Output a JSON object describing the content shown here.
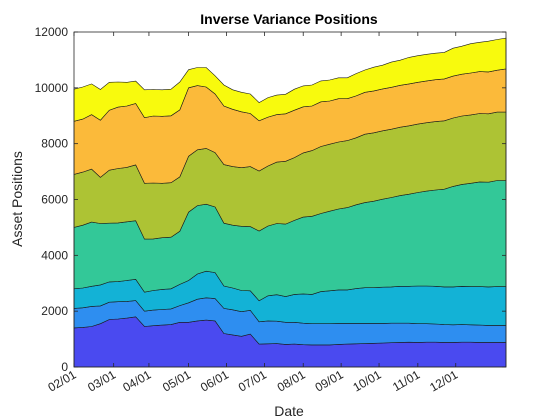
{
  "chart_data": {
    "type": "area",
    "stacked": true,
    "title": "Inverse Variance Positions",
    "xlabel": "Date",
    "ylabel": "Asset Positions",
    "ylim": [
      0,
      12000
    ],
    "yticks": [
      0,
      2000,
      4000,
      6000,
      8000,
      10000,
      12000
    ],
    "ytick_labels": [
      "0",
      "2000",
      "4000",
      "6000",
      "8000",
      "10000",
      "12000"
    ],
    "xlim": [
      1,
      50
    ],
    "xticks": [
      1,
      5.5,
      9.5,
      14,
      18.3,
      22.6,
      27,
      31.3,
      35.6,
      40,
      44.3
    ],
    "xtick_labels": [
      "02/01",
      "03/01",
      "04/01",
      "05/01",
      "06/01",
      "07/01",
      "08/01",
      "09/01",
      "10/01",
      "11/01",
      "12/01"
    ],
    "grid": false,
    "box": true,
    "x": [
      1,
      2,
      3,
      4,
      5,
      6,
      7,
      8,
      9,
      10,
      11,
      12,
      13,
      14,
      15,
      16,
      17,
      18,
      19,
      20,
      21,
      22,
      23,
      24,
      25,
      26,
      27,
      28,
      29,
      30,
      31,
      32,
      33,
      34,
      35,
      36,
      37,
      38,
      39,
      40,
      41,
      42,
      43,
      44,
      45,
      46,
      47,
      48,
      49,
      50
    ],
    "series": [
      {
        "color": "#4a4af0",
        "values": [
          1400,
          1420,
          1450,
          1550,
          1700,
          1720,
          1750,
          1800,
          1450,
          1480,
          1500,
          1520,
          1600,
          1600,
          1650,
          1680,
          1650,
          1200,
          1150,
          1100,
          1180,
          820,
          830,
          840,
          810,
          820,
          800,
          790,
          790,
          790,
          810,
          820,
          830,
          840,
          850,
          860,
          870,
          880,
          890,
          880,
          890,
          890,
          880,
          880,
          890,
          890,
          880,
          880,
          880,
          880
        ]
      },
      {
        "color": "#2e8ef0",
        "values": [
          700,
          700,
          720,
          640,
          620,
          620,
          600,
          580,
          550,
          560,
          560,
          560,
          600,
          700,
          780,
          800,
          800,
          900,
          900,
          880,
          850,
          800,
          820,
          800,
          790,
          780,
          770,
          760,
          760,
          760,
          750,
          740,
          730,
          720,
          710,
          700,
          700,
          690,
          680,
          670,
          660,
          650,
          640,
          630,
          630,
          620,
          620,
          610,
          610,
          610
        ]
      },
      {
        "color": "#13b2d6",
        "values": [
          700,
          710,
          720,
          750,
          730,
          720,
          750,
          760,
          680,
          700,
          720,
          720,
          760,
          800,
          900,
          950,
          930,
          800,
          780,
          760,
          700,
          750,
          900,
          950,
          920,
          1000,
          1050,
          1050,
          1150,
          1180,
          1200,
          1200,
          1250,
          1280,
          1280,
          1300,
          1300,
          1320,
          1320,
          1350,
          1350,
          1350,
          1350,
          1360,
          1370,
          1370,
          1380,
          1380,
          1390,
          1390
        ]
      },
      {
        "color": "#33c898",
        "values": [
          2200,
          2250,
          2300,
          2200,
          2100,
          2100,
          2100,
          2100,
          1900,
          1850,
          1850,
          1850,
          1900,
          2450,
          2450,
          2400,
          2350,
          2250,
          2250,
          2300,
          2300,
          2500,
          2500,
          2550,
          2600,
          2650,
          2750,
          2800,
          2800,
          2850,
          2900,
          2950,
          3000,
          3050,
          3100,
          3150,
          3200,
          3250,
          3300,
          3350,
          3400,
          3450,
          3500,
          3600,
          3650,
          3700,
          3750,
          3750,
          3800,
          3800
        ]
      },
      {
        "color": "#adc334",
        "values": [
          1900,
          1900,
          1900,
          1650,
          1900,
          1950,
          1950,
          2000,
          2000,
          2000,
          1950,
          1950,
          1950,
          2000,
          2000,
          2000,
          1950,
          2100,
          2100,
          2100,
          2150,
          2150,
          2150,
          2200,
          2250,
          2250,
          2300,
          2350,
          2400,
          2400,
          2400,
          2400,
          2400,
          2450,
          2450,
          2450,
          2450,
          2450,
          2450,
          2450,
          2450,
          2450,
          2450,
          2450,
          2450,
          2450,
          2450,
          2450,
          2450,
          2450
        ]
      },
      {
        "color": "#fbba3a",
        "values": [
          1900,
          1900,
          1950,
          2050,
          2150,
          2200,
          2200,
          2200,
          2350,
          2400,
          2400,
          2400,
          2400,
          2450,
          2300,
          2200,
          2100,
          2100,
          2050,
          2000,
          1900,
          1800,
          1750,
          1700,
          1700,
          1700,
          1650,
          1600,
          1600,
          1550,
          1550,
          1500,
          1500,
          1500,
          1500,
          1500,
          1500,
          1500,
          1500,
          1500,
          1500,
          1500,
          1500,
          1500,
          1500,
          1500,
          1500,
          1500,
          1500,
          1550
        ]
      },
      {
        "color": "#f8fa0d",
        "values": [
          1150,
          1150,
          1100,
          1100,
          1000,
          900,
          850,
          800,
          1000,
          950,
          950,
          950,
          1000,
          650,
          650,
          700,
          650,
          750,
          700,
          700,
          700,
          650,
          700,
          700,
          700,
          750,
          750,
          750,
          750,
          750,
          750,
          750,
          800,
          800,
          850,
          850,
          900,
          900,
          950,
          950,
          950,
          950,
          950,
          1000,
          1000,
          1050,
          1050,
          1100,
          1100,
          1100
        ]
      }
    ]
  }
}
